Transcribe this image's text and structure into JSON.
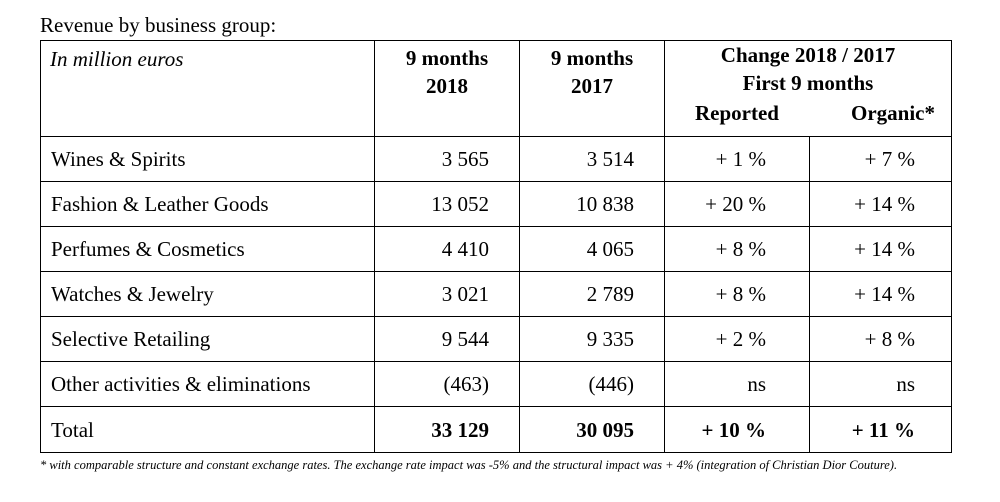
{
  "caption": "Revenue by business group:",
  "header": {
    "units": "In million euros",
    "col_2018": [
      "9 months",
      "2018"
    ],
    "col_2017": [
      "9 months",
      "2017"
    ],
    "change_title": [
      "Change 2018 / 2017",
      "First 9 months"
    ],
    "reported": "Reported",
    "organic": "Organic*"
  },
  "rows": [
    {
      "label": "Wines & Spirits",
      "v2018": "3 565",
      "v2017": "3 514",
      "reported": "+ 1 %",
      "organic": "+ 7 %"
    },
    {
      "label": "Fashion & Leather Goods",
      "v2018": "13 052",
      "v2017": "10 838",
      "reported": "+ 20 %",
      "organic": "+ 14 %"
    },
    {
      "label": "Perfumes & Cosmetics",
      "v2018": "4 410",
      "v2017": "4 065",
      "reported": "+ 8 %",
      "organic": "+ 14 %"
    },
    {
      "label": "Watches & Jewelry",
      "v2018": "3 021",
      "v2017": "2 789",
      "reported": "+ 8 %",
      "organic": "+ 14 %"
    },
    {
      "label": "Selective Retailing",
      "v2018": "9 544",
      "v2017": "9 335",
      "reported": "+ 2 %",
      "organic": "+ 8 %"
    },
    {
      "label": "Other activities & eliminations",
      "v2018": "(463)",
      "v2017": "(446)",
      "reported": "ns",
      "organic": "ns"
    }
  ],
  "total": {
    "label": "Total",
    "v2018": "33 129",
    "v2017": "30 095",
    "reported": "+ 10 %",
    "organic": "+ 11 %"
  },
  "footnote": "* with comparable structure and constant exchange rates. The exchange rate impact was -5% and the structural impact was + 4% (integration of Christian Dior Couture)."
}
